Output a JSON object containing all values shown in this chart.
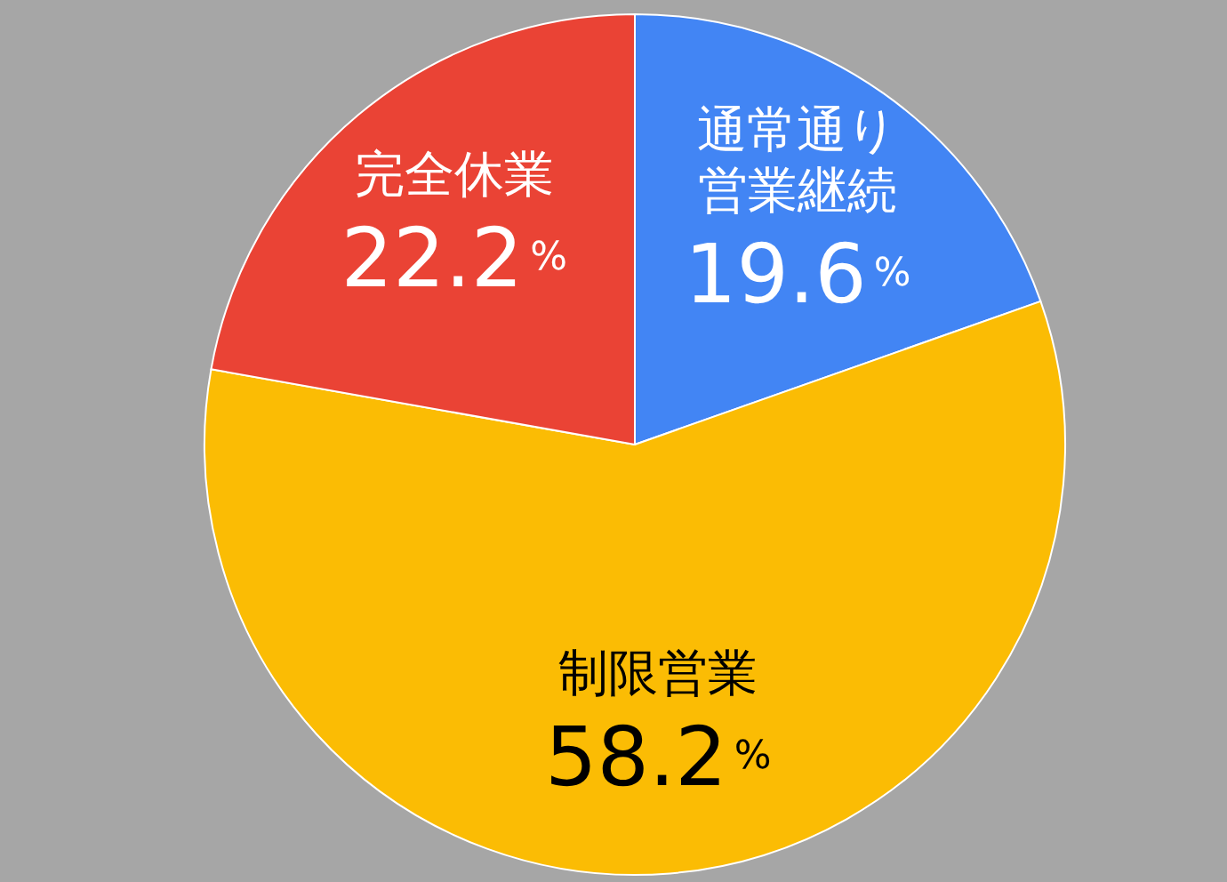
{
  "chart_data": {
    "type": "pie",
    "categories": [
      "通常通り営業継続",
      "制限営業",
      "完全休業"
    ],
    "values": [
      19.6,
      58.2,
      22.2
    ],
    "colors": [
      "#4285f4",
      "#fbbc04",
      "#ea4335"
    ],
    "value_labels": [
      "19.6%",
      "58.2%",
      "22.2%"
    ],
    "legend": false
  }
}
